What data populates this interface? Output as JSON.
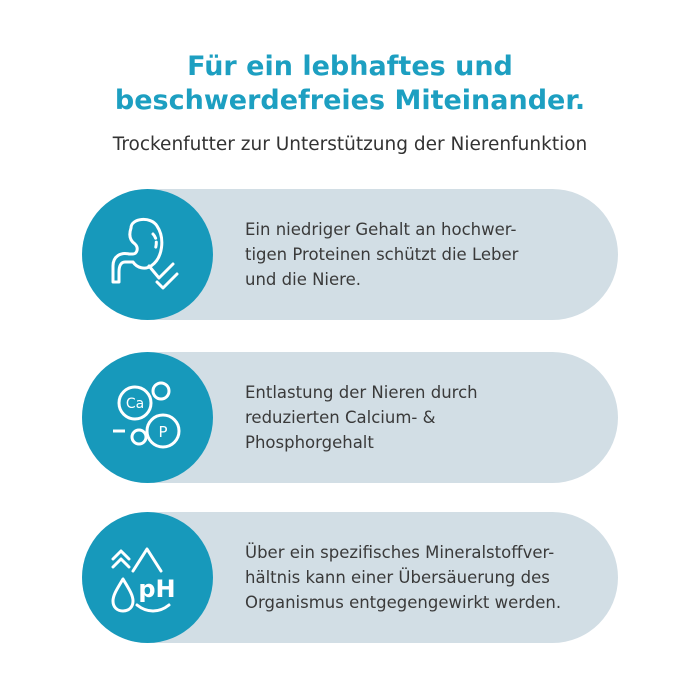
{
  "title_line1": "Für ein lebhaftes und",
  "title_line2": "beschwerdefreies Miteinander.",
  "subtitle": "Trockenfutter zur Unterstützung der Nierenfunktion",
  "colors": {
    "accent": "#1799bb",
    "pill": "#d2dee5",
    "title": "#1d9fc1"
  },
  "features": [
    {
      "icon": "stomach-check-icon",
      "text": "Ein niedriger Gehalt an hochwer-\ntigen Proteinen schützt die Leber\nund die Niere."
    },
    {
      "icon": "calcium-phosphorus-icon",
      "icon_labels": [
        "Ca",
        "P"
      ],
      "text": "Entlastung der Nieren durch\nreduzierten Calcium- &\nPhosphorgehalt"
    },
    {
      "icon": "ph-drop-icon",
      "icon_labels": [
        "pH"
      ],
      "text": "Über ein spezifisches Mineralstoffver-\nhältnis kann einer Übersäuerung des\nOrganismus entgegengewirkt werden."
    }
  ]
}
